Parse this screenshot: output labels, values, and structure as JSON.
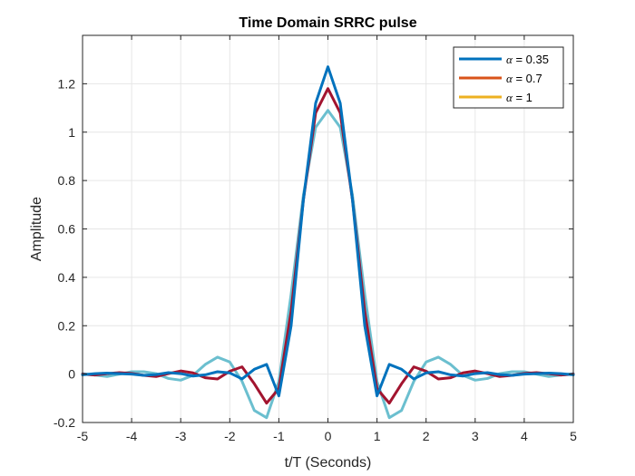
{
  "chart_data": {
    "type": "line",
    "title": "Time Domain SRRC pulse",
    "xlabel": "t/T (Seconds)",
    "ylabel": "Amplitude",
    "xlim": [
      -5,
      5
    ],
    "ylim": [
      -0.2,
      1.4
    ],
    "xticks": [
      -5,
      -4,
      -3,
      -2,
      -1,
      0,
      1,
      2,
      3,
      4,
      5
    ],
    "xtick_labels": [
      "-5",
      "-4",
      "-3",
      "-2",
      "-1",
      "0",
      "1",
      "2",
      "3",
      "4",
      "5"
    ],
    "yticks": [
      -0.2,
      0,
      0.2,
      0.4,
      0.6,
      0.8,
      1,
      1.2
    ],
    "ytick_labels": [
      "-0.2",
      "0",
      "0.2",
      "0.4",
      "0.6",
      "0.8",
      "1",
      "1.2"
    ],
    "grid": true,
    "legend_location": "top-right",
    "legend": [
      {
        "symbol": "α",
        "text": " = 0.35",
        "color": "#0072BD"
      },
      {
        "symbol": "α",
        "text": " = 0.7",
        "color": "#D95319"
      },
      {
        "symbol": "α",
        "text": " = 1",
        "color": "#EDB120"
      }
    ],
    "series": [
      {
        "color": "#6BBFCF",
        "x": [
          -5,
          -4.75,
          -4.5,
          -4.25,
          -4,
          -3.75,
          -3.5,
          -3.25,
          -3,
          -2.75,
          -2.5,
          -2.25,
          -2,
          -1.75,
          -1.5,
          -1.25,
          -1,
          -0.75,
          -0.5,
          -0.25,
          0,
          0.25,
          0.5,
          0.75,
          1,
          1.25,
          1.5,
          1.75,
          2,
          2.25,
          2.5,
          2.75,
          3,
          3.25,
          3.5,
          3.75,
          4,
          4.25,
          4.5,
          4.75,
          5
        ],
        "y": [
          0.002,
          -0.004,
          -0.01,
          0,
          0.01,
          0.01,
          0.002,
          -0.018,
          -0.025,
          -0.005,
          0.04,
          0.07,
          0.05,
          -0.03,
          -0.15,
          -0.18,
          -0.03,
          0.33,
          0.74,
          1.02,
          1.09,
          1.02,
          0.74,
          0.33,
          -0.03,
          -0.18,
          -0.15,
          -0.03,
          0.05,
          0.07,
          0.04,
          -0.005,
          -0.025,
          -0.018,
          0.002,
          0.01,
          0.01,
          0,
          -0.01,
          -0.004,
          0.002
        ]
      },
      {
        "color": "#A2142F",
        "x": [
          -5,
          -4.75,
          -4.5,
          -4.25,
          -4,
          -3.75,
          -3.5,
          -3.25,
          -3,
          -2.75,
          -2.5,
          -2.25,
          -2,
          -1.75,
          -1.5,
          -1.25,
          -1,
          -0.75,
          -0.5,
          -0.25,
          0,
          0.25,
          0.5,
          0.75,
          1,
          1.25,
          1.5,
          1.75,
          2,
          2.25,
          2.5,
          2.75,
          3,
          3.25,
          3.5,
          3.75,
          4,
          4.25,
          4.5,
          4.75,
          5
        ],
        "y": [
          0,
          -0.004,
          0.002,
          0.006,
          0.003,
          -0.005,
          -0.01,
          0.002,
          0.013,
          0.005,
          -0.015,
          -0.02,
          0.012,
          0.03,
          -0.04,
          -0.12,
          -0.06,
          0.26,
          0.72,
          1.08,
          1.18,
          1.08,
          0.72,
          0.26,
          -0.06,
          -0.12,
          -0.04,
          0.03,
          0.012,
          -0.02,
          -0.015,
          0.005,
          0.013,
          0.002,
          -0.01,
          -0.005,
          0.003,
          0.006,
          0.002,
          -0.004,
          0
        ]
      },
      {
        "color": "#0072BD",
        "x": [
          -5,
          -4.75,
          -4.5,
          -4.25,
          -4,
          -3.75,
          -3.5,
          -3.25,
          -3,
          -2.75,
          -2.5,
          -2.25,
          -2,
          -1.75,
          -1.5,
          -1.25,
          -1,
          -0.75,
          -0.5,
          -0.25,
          0,
          0.25,
          0.5,
          0.75,
          1,
          1.25,
          1.5,
          1.75,
          2,
          2.25,
          2.5,
          2.75,
          3,
          3.25,
          3.5,
          3.75,
          4,
          4.25,
          4.5,
          4.75,
          5
        ],
        "y": [
          -0.003,
          0.002,
          0.004,
          0.002,
          0,
          -0.005,
          -0.002,
          0.006,
          0.002,
          -0.008,
          -0.003,
          0.01,
          0.005,
          -0.02,
          0.02,
          0.04,
          -0.09,
          0.2,
          0.72,
          1.12,
          1.27,
          1.12,
          0.72,
          0.2,
          -0.09,
          0.04,
          0.02,
          -0.02,
          0.005,
          0.01,
          -0.003,
          -0.008,
          0.002,
          0.006,
          -0.002,
          -0.005,
          0,
          0.002,
          0.004,
          0.002,
          -0.003
        ]
      }
    ]
  }
}
